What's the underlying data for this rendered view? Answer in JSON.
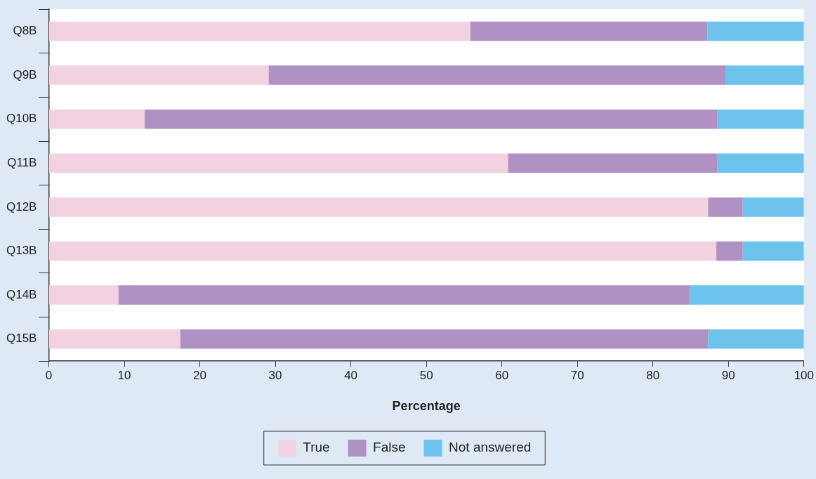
{
  "chart_data": {
    "type": "bar",
    "orientation": "horizontal",
    "stacked": true,
    "xlabel": "Percentage",
    "categories": [
      "Q8B",
      "Q9B",
      "Q10B",
      "Q11B",
      "Q12B",
      "Q13B",
      "Q14B",
      "Q15B"
    ],
    "series": [
      {
        "name": "True",
        "color": "#f2d1e1",
        "values": [
          55.8,
          29.1,
          12.7,
          60.8,
          87.3,
          88.4,
          9.2,
          17.4
        ]
      },
      {
        "name": "False",
        "color": "#af91c3",
        "values": [
          31.4,
          60.5,
          75.8,
          27.7,
          4.6,
          3.5,
          75.7,
          69.9
        ]
      },
      {
        "name": "Not answered",
        "color": "#6ec3ed",
        "values": [
          12.8,
          10.4,
          11.5,
          11.5,
          8.1,
          8.1,
          15.1,
          12.7
        ]
      }
    ],
    "xlim": [
      0,
      100
    ],
    "xticks": [
      0,
      10,
      20,
      30,
      40,
      50,
      60,
      70,
      80,
      90,
      100
    ],
    "grid": false,
    "legend": "bottom"
  }
}
